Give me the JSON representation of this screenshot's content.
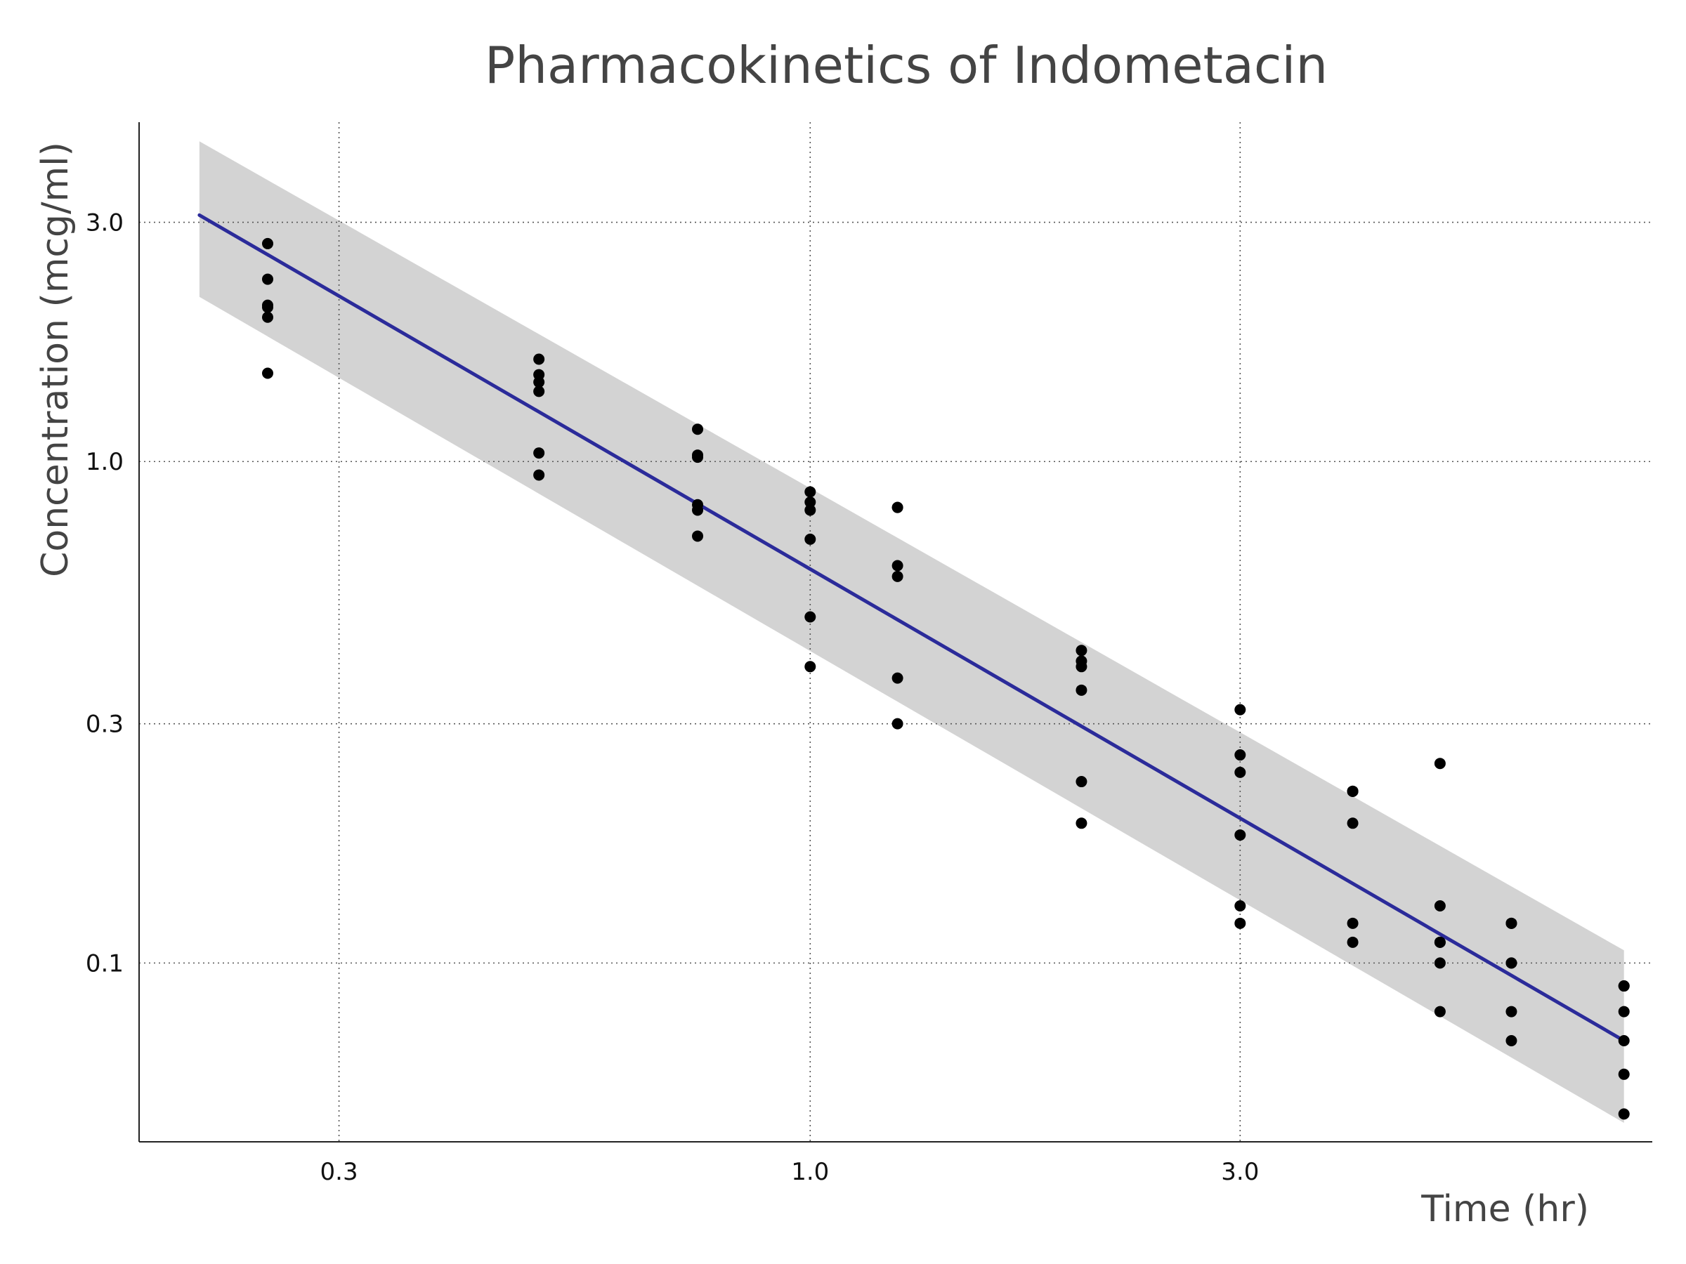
{
  "chart_data": {
    "type": "scatter",
    "title": "Pharmacokinetics of Indometacin",
    "xlabel": "Time (hr)",
    "ylabel": "Concentration (mcg/ml)",
    "x_scale": "log",
    "y_scale": "log",
    "xlim": [
      0.18,
      8.6
    ],
    "ylim": [
      0.044,
      4.75
    ],
    "x_ticks": [
      {
        "value": 0.3,
        "label": "0.3"
      },
      {
        "value": 1.0,
        "label": "1.0"
      },
      {
        "value": 3.0,
        "label": "3.0"
      }
    ],
    "y_ticks": [
      {
        "value": 3.0,
        "label": "3.0"
      },
      {
        "value": 1.0,
        "label": "1.0"
      },
      {
        "value": 0.3,
        "label": "0.3"
      },
      {
        "value": 0.1,
        "label": "0.1"
      }
    ],
    "grid": true,
    "grid_style": "dotted",
    "series": [
      {
        "name": "observed",
        "type": "scatter",
        "color": "#000000",
        "x": [
          0.25,
          0.25,
          0.25,
          0.25,
          0.25,
          0.25,
          0.5,
          0.5,
          0.5,
          0.5,
          0.5,
          0.5,
          0.75,
          0.75,
          0.75,
          0.75,
          0.75,
          0.75,
          1.0,
          1.0,
          1.0,
          1.0,
          1.0,
          1.0,
          1.25,
          1.25,
          1.25,
          1.25,
          1.25,
          1.25,
          2.0,
          2.0,
          2.0,
          2.0,
          2.0,
          2.0,
          3.0,
          3.0,
          3.0,
          3.0,
          3.0,
          3.0,
          4.0,
          4.0,
          4.0,
          4.0,
          4.0,
          4.0,
          5.0,
          5.0,
          5.0,
          5.0,
          5.0,
          5.0,
          6.0,
          6.0,
          6.0,
          6.0,
          6.0,
          6.0,
          8.0,
          8.0,
          8.0,
          8.0,
          8.0,
          8.0
        ],
        "y": [
          1.5,
          1.94,
          2.03,
          2.05,
          2.31,
          2.72,
          0.94,
          1.04,
          1.38,
          1.44,
          1.49,
          1.6,
          0.71,
          0.8,
          0.82,
          1.02,
          1.03,
          1.16,
          0.39,
          0.49,
          0.7,
          0.8,
          0.83,
          0.87,
          0.3,
          0.37,
          0.59,
          0.62,
          0.81,
          0.81,
          0.19,
          0.23,
          0.35,
          0.39,
          0.4,
          0.42,
          0.12,
          0.13,
          0.18,
          0.24,
          0.26,
          0.32,
          0.11,
          0.12,
          0.19,
          0.22,
          0.22,
          0.22,
          0.08,
          0.1,
          0.11,
          0.11,
          0.13,
          0.25,
          0.07,
          0.08,
          0.1,
          0.1,
          0.12,
          0.12,
          0.05,
          0.06,
          0.07,
          0.08,
          0.09,
          0.09
        ]
      },
      {
        "name": "fitted",
        "type": "line",
        "color": "#2b2b9a",
        "x": [
          0.21,
          8.0
        ],
        "y": [
          3.1,
          0.07
        ]
      }
    ],
    "confidence_band": {
      "color": "#d3d3d3",
      "x": [
        0.21,
        8.0
      ],
      "upper": [
        4.35,
        0.106
      ],
      "lower": [
        2.13,
        0.048
      ]
    },
    "legend": "none"
  }
}
